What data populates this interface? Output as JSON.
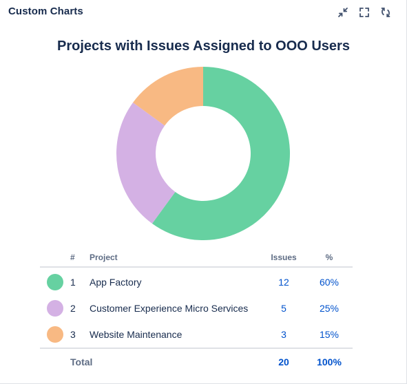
{
  "gadget": {
    "title": "Custom Charts",
    "actions": [
      {
        "name": "minimize-icon"
      },
      {
        "name": "fullscreen-icon"
      },
      {
        "name": "refresh-icon"
      }
    ]
  },
  "chart_data": {
    "type": "pie",
    "style": "donut",
    "title": "Projects with Issues Assigned to OOO Users",
    "categories": [
      "App Factory",
      "Customer Experience Micro Services",
      "Website Maintenance"
    ],
    "values": [
      12,
      5,
      3
    ],
    "percent": [
      "60%",
      "25%",
      "15%"
    ],
    "colors": [
      "#66d1a1",
      "#d4b1e4",
      "#f8b983"
    ],
    "legend": "bottom"
  },
  "table": {
    "headers": {
      "num": "#",
      "project": "Project",
      "issues": "Issues",
      "percent": "%"
    },
    "rows": [
      {
        "num": "1",
        "project": "App Factory",
        "issues": "12",
        "percent": "60%"
      },
      {
        "num": "2",
        "project": "Customer Experience Micro Services",
        "issues": "5",
        "percent": "25%"
      },
      {
        "num": "3",
        "project": "Website Maintenance",
        "issues": "3",
        "percent": "15%"
      }
    ],
    "total": {
      "label": "Total",
      "issues": "20",
      "percent": "100%"
    }
  }
}
